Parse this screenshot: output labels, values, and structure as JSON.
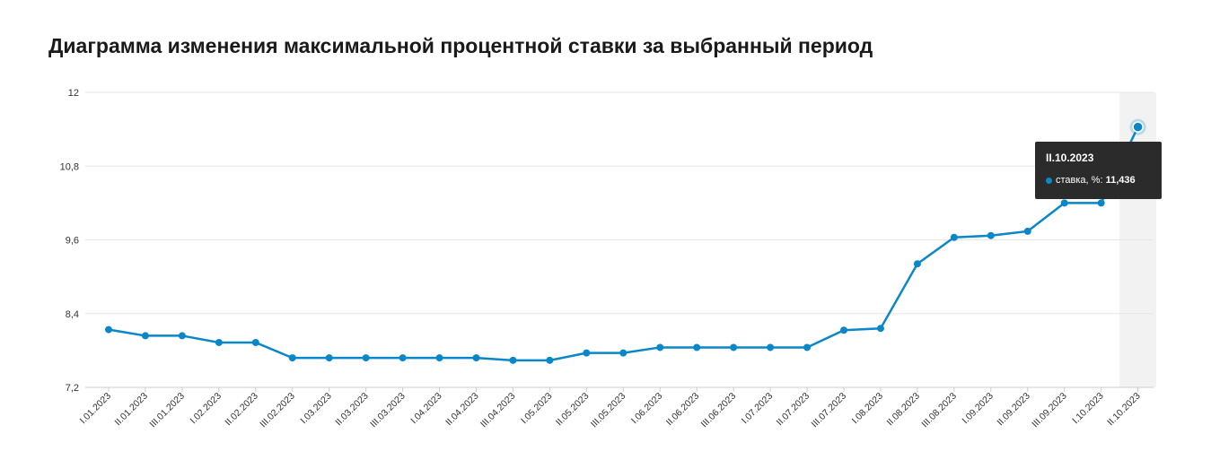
{
  "title": "Диаграмма изменения максимальной процентной ставки за выбранный период",
  "colors": {
    "line": "#0a87c8",
    "grid": "#e6e6e6",
    "highlight": "#f2f2f2",
    "tooltip_bg": "#2b2b2b"
  },
  "tooltip": {
    "date": "II.10.2023",
    "series_label": "ставка, %:",
    "value": "11,436"
  },
  "chart_data": {
    "type": "line",
    "title": "",
    "xlabel": "",
    "ylabel": "",
    "ylim": [
      7.2,
      12
    ],
    "yticks": [
      "7,2",
      "8,4",
      "9,6",
      "10,8",
      "12"
    ],
    "grid": true,
    "highlighted_category": "II.10.2023",
    "categories": [
      "I.01.2023",
      "II.01.2023",
      "III.01.2023",
      "I.02.2023",
      "II.02.2023",
      "III.02.2023",
      "I.03.2023",
      "II.03.2023",
      "III.03.2023",
      "I.04.2023",
      "II.04.2023",
      "III.04.2023",
      "I.05.2023",
      "II.05.2023",
      "III.05.2023",
      "I.06.2023",
      "II.06.2023",
      "III.06.2023",
      "I.07.2023",
      "II.07.2023",
      "III.07.2023",
      "I.08.2023",
      "II.08.2023",
      "III.08.2023",
      "I.09.2023",
      "II.09.2023",
      "III.09.2023",
      "I.10.2023",
      "II.10.2023"
    ],
    "series": [
      {
        "name": "ставка, %",
        "values": [
          8.14,
          8.04,
          8.04,
          7.93,
          7.93,
          7.68,
          7.68,
          7.68,
          7.68,
          7.68,
          7.68,
          7.64,
          7.64,
          7.76,
          7.76,
          7.85,
          7.85,
          7.85,
          7.85,
          7.85,
          8.13,
          8.16,
          9.21,
          9.64,
          9.67,
          9.74,
          10.2,
          10.2,
          11.436
        ]
      }
    ]
  }
}
